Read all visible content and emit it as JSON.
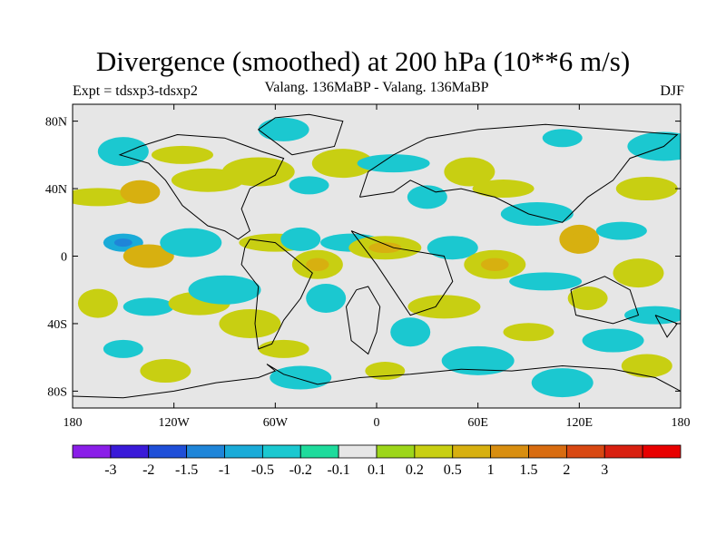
{
  "title": "Divergence (smoothed) at 200 hPa (10**6 m/s)",
  "experiment_label": "Expt = tdsxp3-tdsxp2",
  "subtitle": "Valang. 136MaBP - Valang. 136MaBP",
  "season": "DJF",
  "map": {
    "projection": "cylindrical equidistant",
    "lon_range": [
      -180,
      180
    ],
    "lat_range": [
      -90,
      90
    ],
    "lat_ticks": [
      {
        "value": 80,
        "label": "80N"
      },
      {
        "value": 40,
        "label": "40N"
      },
      {
        "value": 0,
        "label": "0"
      },
      {
        "value": -40,
        "label": "40S"
      },
      {
        "value": -80,
        "label": "80S"
      }
    ],
    "lon_ticks": [
      {
        "value": -180,
        "label": "180"
      },
      {
        "value": -120,
        "label": "120W"
      },
      {
        "value": -60,
        "label": "60W"
      },
      {
        "value": 0,
        "label": "0"
      },
      {
        "value": 60,
        "label": "60E"
      },
      {
        "value": 120,
        "label": "120E"
      },
      {
        "value": 180,
        "label": "180"
      }
    ],
    "background_color": "#e6e6e6",
    "coastline_color": "#000000"
  },
  "colorbar": {
    "colors": [
      "#8a1ee8",
      "#3a1ad8",
      "#1f4fd8",
      "#1f85d8",
      "#1aabd8",
      "#1bc8d0",
      "#1edb9c",
      "#e6e6e6",
      "#9dd61a",
      "#c8cf12",
      "#d7b010",
      "#d88e10",
      "#d86c10",
      "#d84812",
      "#d82010",
      "#e80000"
    ],
    "labels": [
      "-3",
      "-2",
      "-1.5",
      "-1",
      "-0.5",
      "-0.2",
      "-0.1",
      "0.1",
      "0.2",
      "0.5",
      "1",
      "1.5",
      "2",
      "3"
    ]
  },
  "fields": [
    {
      "lon": -150,
      "lat": 8,
      "value": -0.6
    },
    {
      "lon": -135,
      "lat": 0,
      "value": 0.6
    },
    {
      "lon": -110,
      "lat": 8,
      "value": -0.3
    },
    {
      "lon": -165,
      "lat": 35,
      "value": 0.3
    },
    {
      "lon": -140,
      "lat": 38,
      "value": 0.5
    },
    {
      "lon": -150,
      "lat": 62,
      "value": -0.25
    },
    {
      "lon": -115,
      "lat": 60,
      "value": 0.3
    },
    {
      "lon": -100,
      "lat": 45,
      "value": 0.3
    },
    {
      "lon": -165,
      "lat": -28,
      "value": 0.3
    },
    {
      "lon": -135,
      "lat": -30,
      "value": -0.3
    },
    {
      "lon": -105,
      "lat": -28,
      "value": 0.3
    },
    {
      "lon": -90,
      "lat": -20,
      "value": -0.3
    },
    {
      "lon": -150,
      "lat": -55,
      "value": -0.3
    },
    {
      "lon": -125,
      "lat": -68,
      "value": 0.3
    },
    {
      "lon": -75,
      "lat": -40,
      "value": 0.3
    },
    {
      "lon": -60,
      "lat": 8,
      "value": 0.3
    },
    {
      "lon": -45,
      "lat": 10,
      "value": -0.3
    },
    {
      "lon": -35,
      "lat": -5,
      "value": 0.4
    },
    {
      "lon": -15,
      "lat": 8,
      "value": -0.3
    },
    {
      "lon": 5,
      "lat": 5,
      "value": 0.4
    },
    {
      "lon": -30,
      "lat": -25,
      "value": -0.3
    },
    {
      "lon": -55,
      "lat": -55,
      "value": 0.3
    },
    {
      "lon": -45,
      "lat": -72,
      "value": -0.3
    },
    {
      "lon": -70,
      "lat": 50,
      "value": 0.3
    },
    {
      "lon": -40,
      "lat": 42,
      "value": -0.3
    },
    {
      "lon": -55,
      "lat": 75,
      "value": -0.2
    },
    {
      "lon": -20,
      "lat": 55,
      "value": 0.3
    },
    {
      "lon": 10,
      "lat": 55,
      "value": -0.3
    },
    {
      "lon": 30,
      "lat": 35,
      "value": -0.3
    },
    {
      "lon": 55,
      "lat": 50,
      "value": 0.3
    },
    {
      "lon": 75,
      "lat": 40,
      "value": 0.3
    },
    {
      "lon": 95,
      "lat": 25,
      "value": -0.3
    },
    {
      "lon": 120,
      "lat": 10,
      "value": 0.6
    },
    {
      "lon": 145,
      "lat": 15,
      "value": -0.3
    },
    {
      "lon": 160,
      "lat": 40,
      "value": 0.3
    },
    {
      "lon": 170,
      "lat": 65,
      "value": -0.2
    },
    {
      "lon": 110,
      "lat": 70,
      "value": -0.2
    },
    {
      "lon": 45,
      "lat": 5,
      "value": -0.3
    },
    {
      "lon": 70,
      "lat": -5,
      "value": 0.4
    },
    {
      "lon": 100,
      "lat": -15,
      "value": -0.3
    },
    {
      "lon": 125,
      "lat": -25,
      "value": 0.3
    },
    {
      "lon": 155,
      "lat": -10,
      "value": 0.3
    },
    {
      "lon": 165,
      "lat": -35,
      "value": -0.3
    },
    {
      "lon": 40,
      "lat": -30,
      "value": 0.3
    },
    {
      "lon": 20,
      "lat": -45,
      "value": -0.3
    },
    {
      "lon": 90,
      "lat": -45,
      "value": 0.3
    },
    {
      "lon": 140,
      "lat": -50,
      "value": -0.3
    },
    {
      "lon": 60,
      "lat": -62,
      "value": -0.3
    },
    {
      "lon": 5,
      "lat": -68,
      "value": 0.3
    },
    {
      "lon": 160,
      "lat": -65,
      "value": 0.3
    },
    {
      "lon": 110,
      "lat": -75,
      "value": -0.2
    }
  ],
  "coastlines": [
    [
      [
        -180,
        -83
      ],
      [
        -150,
        -84
      ],
      [
        -120,
        -80
      ],
      [
        -95,
        -75
      ],
      [
        -70,
        -72
      ],
      [
        -60,
        -68
      ],
      [
        -65,
        -64
      ],
      [
        -55,
        -70
      ],
      [
        -35,
        -76
      ],
      [
        -10,
        -72
      ],
      [
        20,
        -70
      ],
      [
        50,
        -67
      ],
      [
        80,
        -68
      ],
      [
        110,
        -65
      ],
      [
        140,
        -67
      ],
      [
        165,
        -72
      ],
      [
        180,
        -80
      ]
    ],
    [
      [
        -12,
        -20
      ],
      [
        -18,
        -30
      ],
      [
        -15,
        -50
      ],
      [
        -5,
        -58
      ],
      [
        0,
        -45
      ],
      [
        2,
        -30
      ],
      [
        -5,
        -18
      ],
      [
        -12,
        -20
      ]
    ],
    [
      [
        -75,
        10
      ],
      [
        -60,
        8
      ],
      [
        -50,
        0
      ],
      [
        -38,
        -10
      ],
      [
        -45,
        -25
      ],
      [
        -55,
        -38
      ],
      [
        -62,
        -52
      ],
      [
        -70,
        -55
      ],
      [
        -72,
        -40
      ],
      [
        -70,
        -18
      ],
      [
        -80,
        -5
      ],
      [
        -78,
        5
      ],
      [
        -75,
        10
      ]
    ],
    [
      [
        -90,
        15
      ],
      [
        -82,
        10
      ],
      [
        -75,
        15
      ],
      [
        -80,
        28
      ],
      [
        -75,
        40
      ],
      [
        -60,
        48
      ],
      [
        -55,
        58
      ],
      [
        -68,
        62
      ],
      [
        -90,
        70
      ],
      [
        -118,
        72
      ],
      [
        -140,
        65
      ],
      [
        -152,
        60
      ],
      [
        -135,
        55
      ],
      [
        -125,
        45
      ],
      [
        -115,
        30
      ],
      [
        -100,
        18
      ],
      [
        -90,
        15
      ]
    ],
    [
      [
        -50,
        60
      ],
      [
        -25,
        65
      ],
      [
        -20,
        80
      ],
      [
        -40,
        84
      ],
      [
        -60,
        82
      ],
      [
        -70,
        75
      ],
      [
        -50,
        60
      ]
    ],
    [
      [
        -15,
        15
      ],
      [
        10,
        5
      ],
      [
        40,
        0
      ],
      [
        45,
        -15
      ],
      [
        35,
        -30
      ],
      [
        20,
        -35
      ],
      [
        10,
        -20
      ],
      [
        0,
        -5
      ],
      [
        -15,
        15
      ]
    ],
    [
      [
        -10,
        35
      ],
      [
        10,
        38
      ],
      [
        20,
        45
      ],
      [
        35,
        38
      ],
      [
        50,
        40
      ],
      [
        70,
        35
      ],
      [
        90,
        25
      ],
      [
        110,
        20
      ],
      [
        125,
        35
      ],
      [
        140,
        45
      ],
      [
        150,
        58
      ],
      [
        170,
        65
      ],
      [
        178,
        72
      ],
      [
        140,
        75
      ],
      [
        100,
        78
      ],
      [
        60,
        75
      ],
      [
        30,
        70
      ],
      [
        10,
        60
      ],
      [
        -5,
        50
      ],
      [
        -10,
        35
      ]
    ],
    [
      [
        115,
        -20
      ],
      [
        135,
        -12
      ],
      [
        150,
        -20
      ],
      [
        155,
        -35
      ],
      [
        140,
        -40
      ],
      [
        118,
        -35
      ],
      [
        115,
        -20
      ]
    ],
    [
      [
        165,
        -35
      ],
      [
        178,
        -40
      ],
      [
        172,
        -48
      ],
      [
        165,
        -35
      ]
    ]
  ]
}
